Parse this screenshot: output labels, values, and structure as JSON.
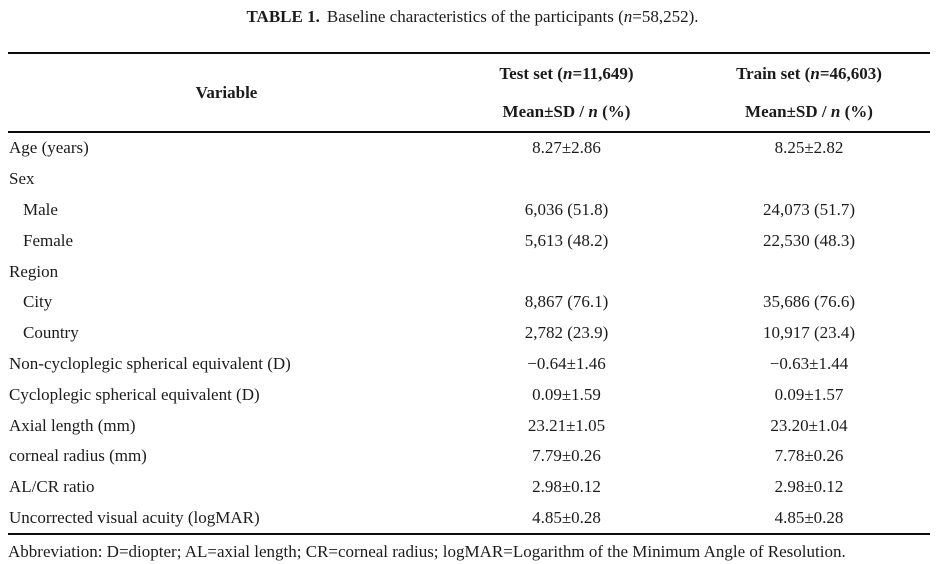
{
  "title": {
    "label": "TABLE 1.",
    "text": "Baseline characteristics of the participants (*n*=58,252)."
  },
  "table": {
    "header": {
      "variable": "Variable",
      "groups": [
        {
          "name": "Test set (*n*=11,649)",
          "sub": "Mean±SD / *n* (%)"
        },
        {
          "name": "Train set (*n*=46,603)",
          "sub": "Mean±SD / *n* (%)"
        }
      ]
    },
    "rows": [
      {
        "label": "Age (years)",
        "indent": false,
        "test": "8.27±2.86",
        "train": "8.25±2.82"
      },
      {
        "label": "Sex",
        "indent": false,
        "test": "",
        "train": ""
      },
      {
        "label": "Male",
        "indent": true,
        "test": "6,036 (51.8)",
        "train": "24,073 (51.7)"
      },
      {
        "label": "Female",
        "indent": true,
        "test": "5,613 (48.2)",
        "train": "22,530 (48.3)"
      },
      {
        "label": "Region",
        "indent": false,
        "test": "",
        "train": ""
      },
      {
        "label": "City",
        "indent": true,
        "test": "8,867 (76.1)",
        "train": "35,686 (76.6)"
      },
      {
        "label": "Country",
        "indent": true,
        "test": "2,782 (23.9)",
        "train": "10,917 (23.4)"
      },
      {
        "label": "Non-cycloplegic spherical equivalent (D)",
        "indent": false,
        "test": "−0.64±1.46",
        "train": "−0.63±1.44"
      },
      {
        "label": "Cycloplegic spherical equivalent (D)",
        "indent": false,
        "test": "0.09±1.59",
        "train": "0.09±1.57"
      },
      {
        "label": "Axial length (mm)",
        "indent": false,
        "test": "23.21±1.05",
        "train": "23.20±1.04"
      },
      {
        "label": "corneal radius (mm)",
        "indent": false,
        "test": "7.79±0.26",
        "train": "7.78±0.26"
      },
      {
        "label": "AL/CR ratio",
        "indent": false,
        "test": "2.98±0.12",
        "train": "2.98±0.12"
      },
      {
        "label": "Uncorrected visual acuity (logMAR)",
        "indent": false,
        "test": "4.85±0.28",
        "train": "4.85±0.28"
      }
    ]
  },
  "footnote": "Abbreviation: D=diopter; AL=axial length; CR=corneal radius; logMAR=Logarithm of the Minimum Angle of Resolution."
}
